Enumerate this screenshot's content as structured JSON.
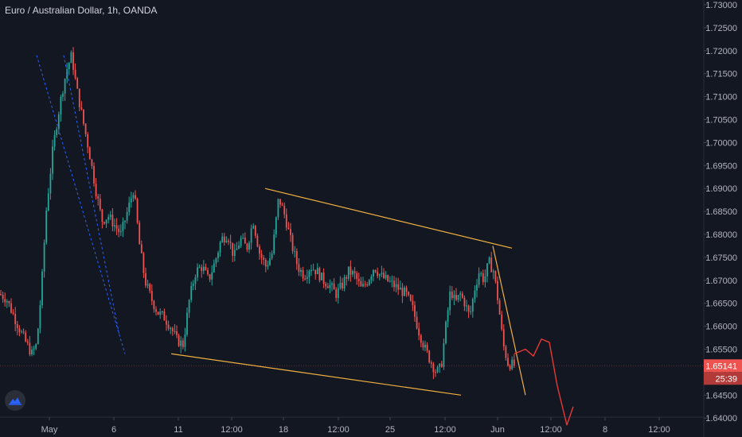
{
  "chart_title": "Euro / Australian Dollar, 1h, OANDA",
  "colors": {
    "background": "#131722",
    "up": "#26a69a",
    "down": "#ef5350",
    "trendline": "#f0b040",
    "dashed": "#2962ff",
    "projection": "#e53935",
    "axis_text": "#b2b5be"
  },
  "logo_icon": "tradingview-cloud-icon",
  "chart_data": {
    "type": "candlestick",
    "title": "Euro / Australian Dollar, 1h, OANDA",
    "x_tick_labels": [
      "May",
      "6",
      "11",
      "12:00",
      "18",
      "12:00",
      "25",
      "12:00",
      "Jun",
      "12:00",
      "8",
      "12:00"
    ],
    "y_tick_labels": [
      "1.73000",
      "1.72500",
      "1.72000",
      "1.71500",
      "1.71000",
      "1.70500",
      "1.70000",
      "1.69500",
      "1.69000",
      "1.68500",
      "1.68000",
      "1.67500",
      "1.67000",
      "1.66500",
      "1.66000",
      "1.65500",
      "1.65000",
      "1.64500",
      "1.64000"
    ],
    "ylim": [
      1.6375,
      1.731
    ],
    "current_price": "1.65141",
    "countdown": "25:39",
    "close_path": [
      [
        0,
        1.667
      ],
      [
        8,
        1.666
      ],
      [
        18,
        1.662
      ],
      [
        28,
        1.658
      ],
      [
        40,
        1.654
      ],
      [
        46,
        1.656
      ],
      [
        52,
        1.668
      ],
      [
        58,
        1.685
      ],
      [
        66,
        1.698
      ],
      [
        72,
        1.705
      ],
      [
        78,
        1.711
      ],
      [
        84,
        1.716
      ],
      [
        90,
        1.719
      ],
      [
        96,
        1.712
      ],
      [
        104,
        1.705
      ],
      [
        112,
        1.698
      ],
      [
        120,
        1.69
      ],
      [
        128,
        1.683
      ],
      [
        136,
        1.684
      ],
      [
        144,
        1.682
      ],
      [
        152,
        1.68
      ],
      [
        160,
        1.685
      ],
      [
        168,
        1.69
      ],
      [
        175,
        1.678
      ],
      [
        182,
        1.67
      ],
      [
        190,
        1.666
      ],
      [
        198,
        1.663
      ],
      [
        206,
        1.662
      ],
      [
        214,
        1.66
      ],
      [
        222,
        1.657
      ],
      [
        230,
        1.656
      ],
      [
        238,
        1.666
      ],
      [
        246,
        1.672
      ],
      [
        254,
        1.673
      ],
      [
        262,
        1.67
      ],
      [
        270,
        1.674
      ],
      [
        278,
        1.679
      ],
      [
        286,
        1.68
      ],
      [
        294,
        1.675
      ],
      [
        302,
        1.679
      ],
      [
        310,
        1.677
      ],
      [
        318,
        1.683
      ],
      [
        326,
        1.676
      ],
      [
        334,
        1.673
      ],
      [
        342,
        1.676
      ],
      [
        350,
        1.688
      ],
      [
        358,
        1.684
      ],
      [
        366,
        1.678
      ],
      [
        374,
        1.673
      ],
      [
        382,
        1.671
      ],
      [
        390,
        1.673
      ],
      [
        398,
        1.672
      ],
      [
        406,
        1.67
      ],
      [
        414,
        1.669
      ],
      [
        422,
        1.667
      ],
      [
        430,
        1.669
      ],
      [
        438,
        1.672
      ],
      [
        446,
        1.671
      ],
      [
        454,
        1.668
      ],
      [
        462,
        1.67
      ],
      [
        470,
        1.673
      ],
      [
        478,
        1.671
      ],
      [
        486,
        1.67
      ],
      [
        494,
        1.669
      ],
      [
        502,
        1.668
      ],
      [
        510,
        1.667
      ],
      [
        518,
        1.664
      ],
      [
        526,
        1.659
      ],
      [
        534,
        1.655
      ],
      [
        542,
        1.652
      ],
      [
        548,
        1.65
      ],
      [
        554,
        1.651
      ],
      [
        560,
        1.66
      ],
      [
        566,
        1.668
      ],
      [
        572,
        1.665
      ],
      [
        578,
        1.667
      ],
      [
        584,
        1.665
      ],
      [
        590,
        1.662
      ],
      [
        596,
        1.668
      ],
      [
        602,
        1.672
      ],
      [
        608,
        1.67
      ],
      [
        614,
        1.674
      ],
      [
        620,
        1.672
      ],
      [
        626,
        1.665
      ],
      [
        632,
        1.656
      ],
      [
        638,
        1.652
      ],
      [
        646,
        1.6514
      ]
    ],
    "trendlines": [
      {
        "name": "upper-channel",
        "points": [
          [
            333,
            1.69
          ],
          [
            643,
            1.677
          ]
        ]
      },
      {
        "name": "lower-channel",
        "points": [
          [
            215,
            1.654
          ],
          [
            579,
            1.645
          ]
        ]
      },
      {
        "name": "breakdown-line",
        "points": [
          [
            619,
            1.6775
          ],
          [
            660,
            1.645
          ]
        ]
      }
    ],
    "dashed_lines": [
      {
        "points": [
          [
            46,
            1.719
          ],
          [
            157,
            1.654
          ]
        ]
      },
      {
        "points": [
          [
            80,
            1.719
          ],
          [
            150,
            1.658
          ]
        ]
      }
    ],
    "projection_path": [
      [
        646,
        1.654
      ],
      [
        660,
        1.655
      ],
      [
        670,
        1.6535
      ],
      [
        680,
        1.6572
      ],
      [
        690,
        1.6565
      ],
      [
        700,
        1.647
      ],
      [
        712,
        1.6385
      ],
      [
        720,
        1.6425
      ]
    ]
  }
}
